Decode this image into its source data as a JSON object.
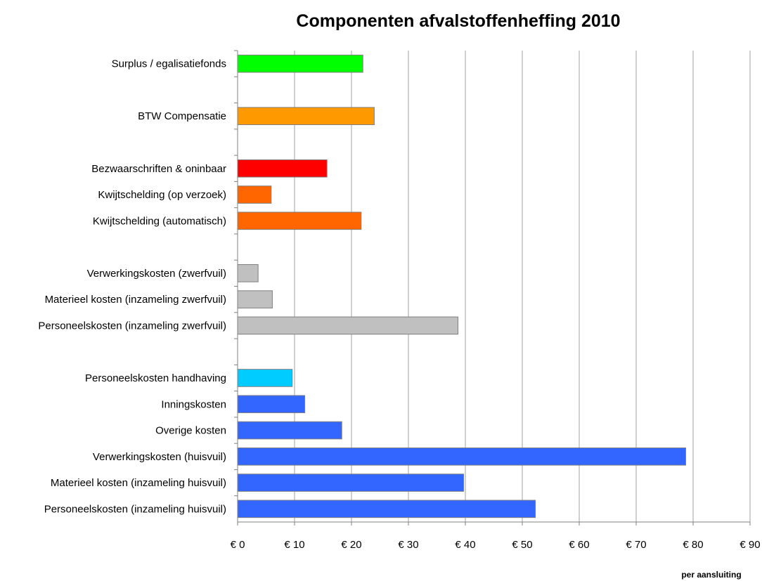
{
  "chart_data": {
    "type": "bar",
    "orientation": "horizontal",
    "title": "Componenten afvalstoffenheffing 2010",
    "xlabel": "per aansluiting",
    "ylabel": "",
    "xlim": [
      0,
      90
    ],
    "tick_step": 10,
    "tick_prefix": "€ ",
    "grid": "vertical",
    "legend": "none",
    "categories": [
      "Surplus / egalisatiefonds",
      "",
      "BTW Compensatie",
      "",
      "Bezwaarschriften & oninbaar",
      "Kwijtschelding (op verzoek)",
      "Kwijtschelding (automatisch)",
      "",
      "Verwerkingskosten (zwerfvuil)",
      "Materieel kosten (inzameling zwerfvuil)",
      "Personeelskosten (inzameling zwerfvuil)",
      "",
      "Personeelskosten handhaving",
      "Inningskosten",
      "Overige kosten",
      "Verwerkingskosten (huisvuil)",
      "Materieel kosten (inzameling huisvuil)",
      "Personeelskosten (inzameling huisvuil)"
    ],
    "values": [
      22,
      null,
      24,
      null,
      15.7,
      5.9,
      21.7,
      null,
      3.6,
      6.1,
      38.7,
      null,
      9.6,
      11.8,
      18.3,
      78.7,
      39.7,
      52.3
    ],
    "colors": [
      "#00ff00",
      null,
      "#ff9900",
      null,
      "#ff0000",
      "#ff6600",
      "#ff6600",
      null,
      "#c0c0c0",
      "#c0c0c0",
      "#c0c0c0",
      null,
      "#00ccff",
      "#3366ff",
      "#3366ff",
      "#3366ff",
      "#3366ff",
      "#3366ff"
    ]
  }
}
